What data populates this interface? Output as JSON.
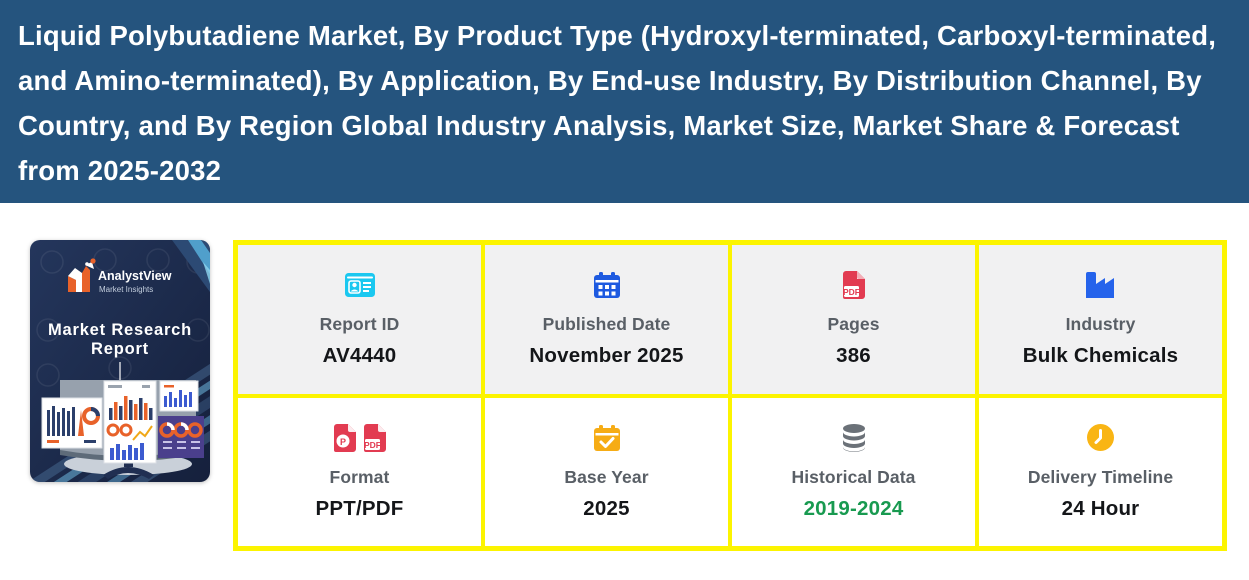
{
  "header": {
    "title": "Liquid Polybutadiene Market, By Product Type (Hydroxyl-terminated, Carboxyl-terminated, and Amino-terminated), By Application, By End-use Industry, By Distribution Channel, By Country, and By Region Global Industry Analysis, Market Size, Market Share & Forecast from 2025-2032",
    "bg_color": "#25547E",
    "text_color": "#FFFFFF"
  },
  "cover": {
    "brand": "AnalystView",
    "brand_sub": "Market Insights",
    "title_line1": "Market Research",
    "title_line2": "Report"
  },
  "info_grid": {
    "border_color": "#FCF400",
    "top_row_bg": "#F1F1F2",
    "bottom_row_bg": "#FFFFFF",
    "cells": [
      {
        "label": "Report ID",
        "value": "AV4440",
        "icon": "id-card-icon",
        "icon_color": "#1BC8F0",
        "value_color": "#141619"
      },
      {
        "label": "Published Date",
        "value": "November 2025",
        "icon": "calendar-icon",
        "icon_color": "#1E5AE0",
        "value_color": "#141619"
      },
      {
        "label": "Pages",
        "value": "386",
        "icon": "pdf-file-icon",
        "icon_color": "#E23B51",
        "value_color": "#141619"
      },
      {
        "label": "Industry",
        "value": "Bulk Chemicals",
        "icon": "factory-icon",
        "icon_color": "#2563EB",
        "value_color": "#141619"
      },
      {
        "label": "Format",
        "value": "PPT/PDF",
        "icon": "ppt-pdf-file-icons",
        "icon_color": "#E23B51",
        "value_color": "#141619"
      },
      {
        "label": "Base Year",
        "value": "2025",
        "icon": "calendar-check-icon",
        "icon_color": "#F6AC15",
        "value_color": "#141619"
      },
      {
        "label": "Historical Data",
        "value": "2019-2024",
        "icon": "database-icon",
        "icon_color": "#6B7178",
        "value_color": "#189A50"
      },
      {
        "label": "Delivery Timeline",
        "value": "24 Hour",
        "icon": "clock-icon",
        "icon_color": "#F9B514",
        "value_color": "#141619"
      }
    ]
  }
}
